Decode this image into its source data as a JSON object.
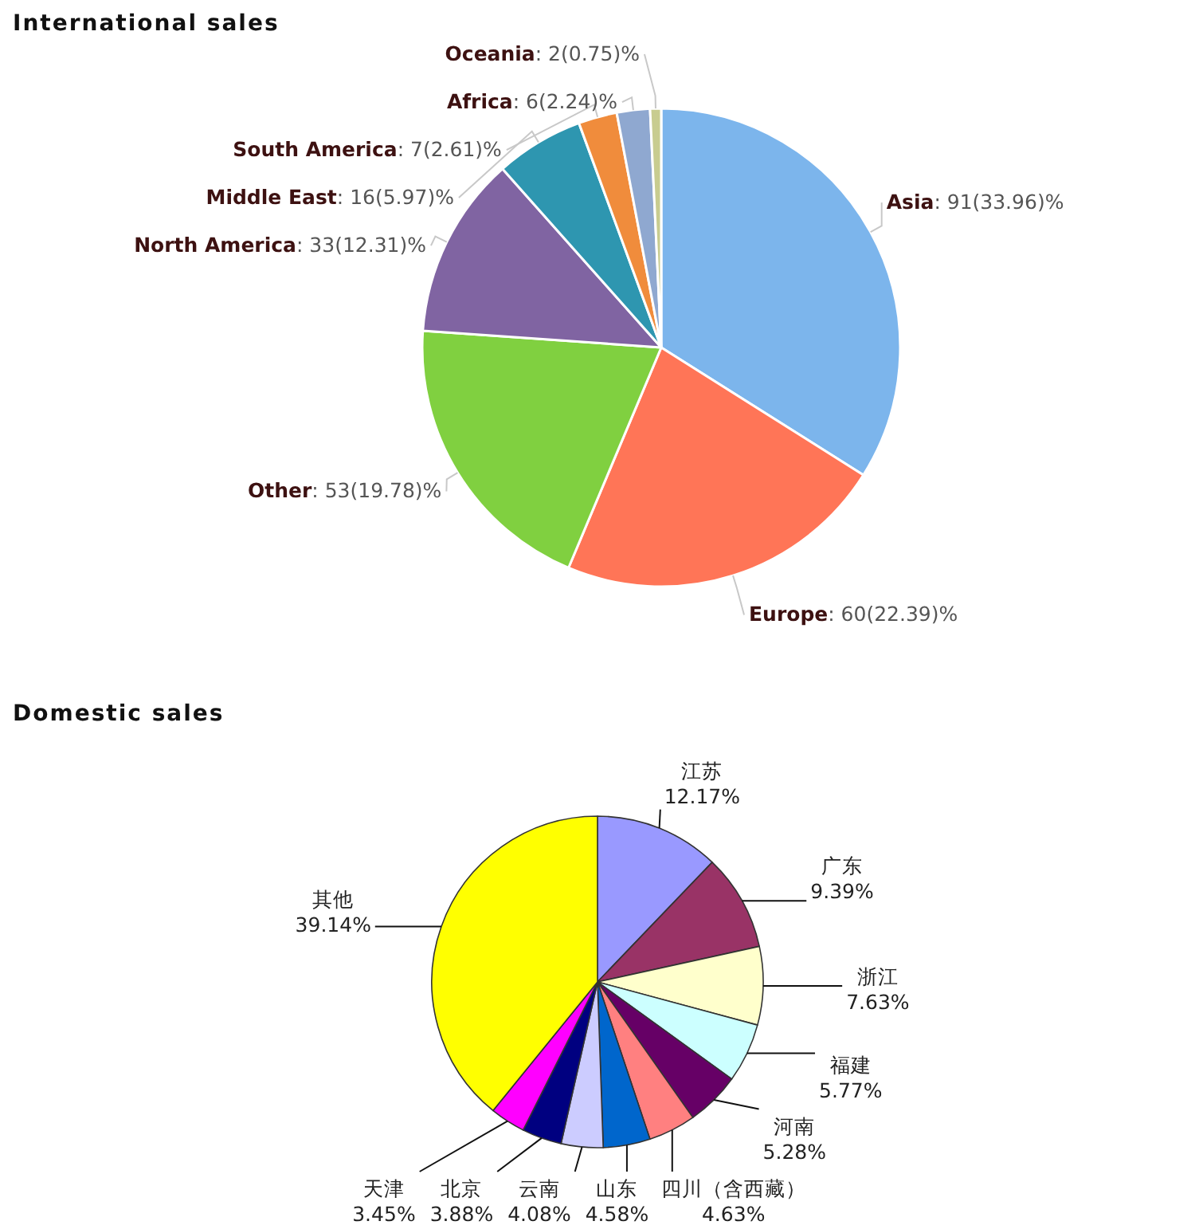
{
  "chart_data": [
    {
      "type": "pie",
      "title": "International sales",
      "categories": [
        "Asia",
        "Europe",
        "Other",
        "North America",
        "Middle East",
        "South America",
        "Africa",
        "Oceania"
      ],
      "values": [
        91,
        60,
        53,
        33,
        16,
        7,
        6,
        2
      ],
      "colors": [
        "#7cb5ec",
        "#ff7557",
        "#80d040",
        "#8064a2",
        "#2e96b0",
        "#f08c3c",
        "#8fa8d0",
        "#c8cc90"
      ],
      "value_labels": [
        ": 91(33.96)%",
        ": 60(22.39)%",
        ": 53(19.78)%",
        ": 33(12.31)%",
        ": 16(5.97)%",
        ": 7(2.61)%",
        ": 6(2.24)%",
        ": 2(0.75)%"
      ]
    },
    {
      "type": "pie",
      "title": "Domestic sales",
      "categories": [
        "江苏",
        "广东",
        "浙江",
        "福建",
        "河南",
        "四川（含西藏）",
        "山东",
        "云南",
        "北京",
        "天津",
        "其他"
      ],
      "values": [
        12.17,
        9.39,
        7.63,
        5.77,
        5.28,
        4.63,
        4.58,
        4.08,
        3.88,
        3.45,
        39.14
      ],
      "colors": [
        "#9999ff",
        "#993366",
        "#ffffcc",
        "#ccffff",
        "#660066",
        "#ff8080",
        "#0066cc",
        "#ccccff",
        "#000080",
        "#ff00ff",
        "#ffff00"
      ],
      "value_labels": [
        "12.17%",
        "9.39%",
        "7.63%",
        "5.77%",
        "5.28%",
        "4.63%",
        "4.58%",
        "4.08%",
        "3.88%",
        "3.45%",
        "39.14%"
      ]
    }
  ]
}
